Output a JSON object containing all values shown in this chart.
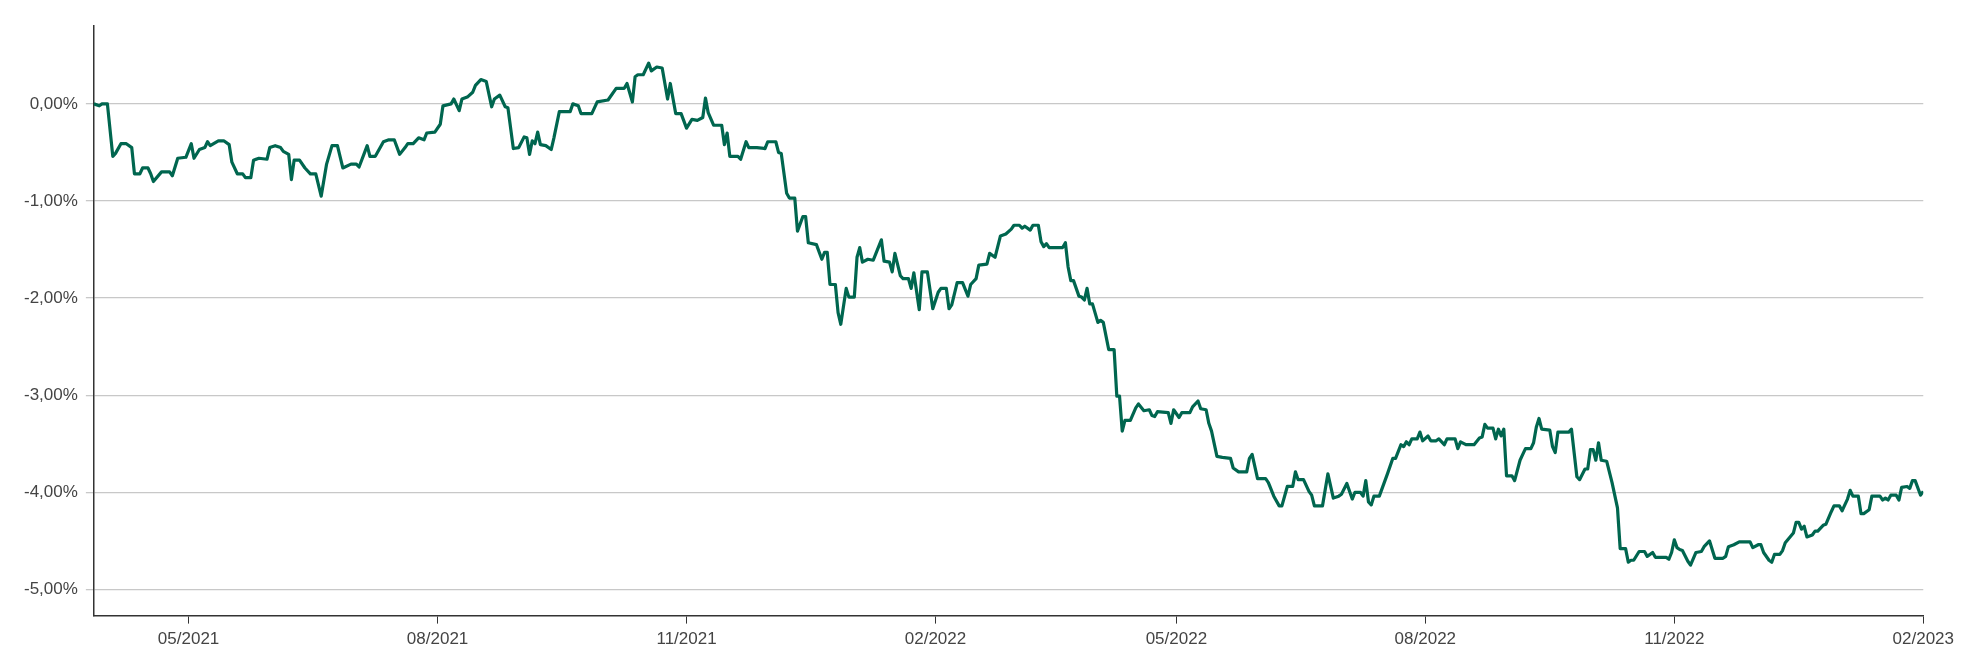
{
  "chart_data": {
    "type": "line",
    "xlim": [
      "2021-03-27",
      "2023-02-01"
    ],
    "ylim": [
      -5.27,
      0.8
    ],
    "xticks": [
      {
        "value": "2021-05-01",
        "label": "05/2021"
      },
      {
        "value": "2021-08-01",
        "label": "08/2021"
      },
      {
        "value": "2021-11-01",
        "label": "11/2021"
      },
      {
        "value": "2022-02-01",
        "label": "02/2022"
      },
      {
        "value": "2022-05-01",
        "label": "05/2022"
      },
      {
        "value": "2022-08-01",
        "label": "08/2022"
      },
      {
        "value": "2022-11-01",
        "label": "11/2022"
      },
      {
        "value": "2023-02-01",
        "label": "02/2023"
      }
    ],
    "yticks": [
      {
        "value": 0,
        "label": "0,00%"
      },
      {
        "value": -1,
        "label": "-1,00%"
      },
      {
        "value": -2,
        "label": "-2,00%"
      },
      {
        "value": -3,
        "label": "-3,00%"
      },
      {
        "value": -4,
        "label": "-4,00%"
      },
      {
        "value": -5,
        "label": "-5,00%"
      }
    ],
    "grid": "y",
    "legend": false,
    "marker": "none",
    "line_style": "solid",
    "series": [
      {
        "color": "#00664f",
        "x": [
          "2021-03-27",
          "2021-03-29",
          "2021-03-30",
          "2021-04-01",
          "2021-04-03",
          "2021-04-04",
          "2021-04-06",
          "2021-04-08",
          "2021-04-10",
          "2021-04-11",
          "2021-04-13",
          "2021-04-14",
          "2021-04-16",
          "2021-04-17",
          "2021-04-18",
          "2021-04-21",
          "2021-04-24",
          "2021-04-25",
          "2021-04-27",
          "2021-04-30",
          "2021-05-02",
          "2021-05-03",
          "2021-05-05",
          "2021-05-07",
          "2021-05-08",
          "2021-05-09",
          "2021-05-12",
          "2021-05-14",
          "2021-05-16",
          "2021-05-17",
          "2021-05-19",
          "2021-05-21",
          "2021-05-22",
          "2021-05-24",
          "2021-05-25",
          "2021-05-27",
          "2021-05-30",
          "2021-05-31",
          "2021-06-02",
          "2021-06-04",
          "2021-06-05",
          "2021-06-07",
          "2021-06-08",
          "2021-06-09",
          "2021-06-11",
          "2021-06-13",
          "2021-06-15",
          "2021-06-17",
          "2021-06-19",
          "2021-06-21",
          "2021-06-23",
          "2021-06-25",
          "2021-06-27",
          "2021-06-30",
          "2021-07-02",
          "2021-07-03",
          "2021-07-06",
          "2021-07-07",
          "2021-07-09",
          "2021-07-12",
          "2021-07-14",
          "2021-07-16",
          "2021-07-18",
          "2021-07-20",
          "2021-07-21",
          "2021-07-23",
          "2021-07-25",
          "2021-07-27",
          "2021-07-28",
          "2021-07-31",
          "2021-08-02",
          "2021-08-03",
          "2021-08-06",
          "2021-08-07",
          "2021-08-09",
          "2021-08-10",
          "2021-08-12",
          "2021-08-14",
          "2021-08-15",
          "2021-08-17",
          "2021-08-19",
          "2021-08-21",
          "2021-08-22",
          "2021-08-24",
          "2021-08-26",
          "2021-08-27",
          "2021-08-29",
          "2021-08-31",
          "2021-09-02",
          "2021-09-03",
          "2021-09-04",
          "2021-09-05",
          "2021-09-06",
          "2021-09-07",
          "2021-09-08",
          "2021-09-10",
          "2021-09-12",
          "2021-09-13",
          "2021-09-15",
          "2021-09-19",
          "2021-09-20",
          "2021-09-22",
          "2021-09-23",
          "2021-09-27",
          "2021-09-29",
          "2021-10-03",
          "2021-10-06",
          "2021-10-09",
          "2021-10-10",
          "2021-10-12",
          "2021-10-13",
          "2021-10-14",
          "2021-10-16",
          "2021-10-18",
          "2021-10-19",
          "2021-10-21",
          "2021-10-23",
          "2021-10-25",
          "2021-10-26",
          "2021-10-28",
          "2021-10-30",
          "2021-11-01",
          "2021-11-03",
          "2021-11-05",
          "2021-11-07",
          "2021-11-08",
          "2021-11-09",
          "2021-11-11",
          "2021-11-14",
          "2021-11-15",
          "2021-11-16",
          "2021-11-17",
          "2021-11-20",
          "2021-11-21",
          "2021-11-23",
          "2021-11-24",
          "2021-11-27",
          "2021-11-30",
          "2021-12-01",
          "2021-12-04",
          "2021-12-05",
          "2021-12-06",
          "2021-12-08",
          "2021-12-09",
          "2021-12-11",
          "2021-12-12",
          "2021-12-14",
          "2021-12-15",
          "2021-12-16",
          "2021-12-19",
          "2021-12-21",
          "2021-12-22",
          "2021-12-23",
          "2021-12-24",
          "2021-12-26",
          "2021-12-27",
          "2021-12-28",
          "2021-12-30",
          "2021-12-31",
          "2022-01-02",
          "2022-01-03",
          "2022-01-04",
          "2022-01-05",
          "2022-01-07",
          "2022-01-09",
          "2022-01-10",
          "2022-01-12",
          "2022-01-13",
          "2022-01-15",
          "2022-01-16",
          "2022-01-17",
          "2022-01-19",
          "2022-01-20",
          "2022-01-22",
          "2022-01-23",
          "2022-01-24",
          "2022-01-26",
          "2022-01-27",
          "2022-01-29",
          "2022-01-31",
          "2022-02-02",
          "2022-02-03",
          "2022-02-05",
          "2022-02-06",
          "2022-02-07",
          "2022-02-09",
          "2022-02-11",
          "2022-02-13",
          "2022-02-14",
          "2022-02-16",
          "2022-02-17",
          "2022-02-20",
          "2022-02-21",
          "2022-02-23",
          "2022-02-25",
          "2022-02-27",
          "2022-03-01",
          "2022-03-02",
          "2022-03-04",
          "2022-03-05",
          "2022-03-06",
          "2022-03-08",
          "2022-03-09",
          "2022-03-11",
          "2022-03-12",
          "2022-03-13",
          "2022-03-14",
          "2022-03-15",
          "2022-03-20",
          "2022-03-21",
          "2022-03-22",
          "2022-03-23",
          "2022-03-24",
          "2022-03-26",
          "2022-03-27",
          "2022-03-28",
          "2022-03-29",
          "2022-03-30",
          "2022-03-31",
          "2022-04-02",
          "2022-04-03",
          "2022-04-04",
          "2022-04-06",
          "2022-04-08",
          "2022-04-09",
          "2022-04-10",
          "2022-04-11",
          "2022-04-12",
          "2022-04-14",
          "2022-04-16",
          "2022-04-17",
          "2022-04-19",
          "2022-04-21",
          "2022-04-22",
          "2022-04-23",
          "2022-04-24",
          "2022-04-28",
          "2022-04-29",
          "2022-04-30",
          "2022-05-02",
          "2022-05-03",
          "2022-05-06",
          "2022-05-07",
          "2022-05-09",
          "2022-05-10",
          "2022-05-12",
          "2022-05-13",
          "2022-05-14",
          "2022-05-16",
          "2022-05-18",
          "2022-05-21",
          "2022-05-22",
          "2022-05-24",
          "2022-05-27",
          "2022-05-28",
          "2022-05-29",
          "2022-05-31",
          "2022-06-03",
          "2022-06-04",
          "2022-06-06",
          "2022-06-08",
          "2022-06-09",
          "2022-06-11",
          "2022-06-13",
          "2022-06-14",
          "2022-06-15",
          "2022-06-17",
          "2022-06-19",
          "2022-06-20",
          "2022-06-21",
          "2022-06-24",
          "2022-06-26",
          "2022-06-28",
          "2022-06-30",
          "2022-07-01",
          "2022-07-03",
          "2022-07-05",
          "2022-07-06",
          "2022-07-08",
          "2022-07-09",
          "2022-07-10",
          "2022-07-11",
          "2022-07-12",
          "2022-07-13",
          "2022-07-15",
          "2022-07-18",
          "2022-07-20",
          "2022-07-21",
          "2022-07-23",
          "2022-07-24",
          "2022-07-25",
          "2022-07-26",
          "2022-07-27",
          "2022-07-29",
          "2022-07-30",
          "2022-07-31",
          "2022-08-02",
          "2022-08-03",
          "2022-08-05",
          "2022-08-06",
          "2022-08-08",
          "2022-08-09",
          "2022-08-12",
          "2022-08-13",
          "2022-08-14",
          "2022-08-16",
          "2022-08-19",
          "2022-08-21",
          "2022-08-22",
          "2022-08-23",
          "2022-08-24",
          "2022-08-26",
          "2022-08-27",
          "2022-08-28",
          "2022-08-29",
          "2022-08-30",
          "2022-08-31",
          "2022-09-02",
          "2022-09-03",
          "2022-09-05",
          "2022-09-06",
          "2022-09-07",
          "2022-09-09",
          "2022-09-10",
          "2022-09-11",
          "2022-09-12",
          "2022-09-13",
          "2022-09-16",
          "2022-09-17",
          "2022-09-18",
          "2022-09-19",
          "2022-09-23",
          "2022-09-24",
          "2022-09-26",
          "2022-09-27",
          "2022-09-29",
          "2022-09-30",
          "2022-10-01",
          "2022-10-02",
          "2022-10-03",
          "2022-10-04",
          "2022-10-05",
          "2022-10-07",
          "2022-10-09",
          "2022-10-11",
          "2022-10-12",
          "2022-10-14",
          "2022-10-15",
          "2022-10-16",
          "2022-10-17",
          "2022-10-19",
          "2022-10-21",
          "2022-10-22",
          "2022-10-24",
          "2022-10-25",
          "2022-10-29",
          "2022-10-30",
          "2022-10-31",
          "2022-11-01",
          "2022-11-02",
          "2022-11-03",
          "2022-11-04",
          "2022-11-06",
          "2022-11-07",
          "2022-11-09",
          "2022-11-11",
          "2022-11-12",
          "2022-11-14",
          "2022-11-16",
          "2022-11-19",
          "2022-11-20",
          "2022-11-21",
          "2022-11-23",
          "2022-11-25",
          "2022-11-29",
          "2022-11-30",
          "2022-12-02",
          "2022-12-03",
          "2022-12-04",
          "2022-12-06",
          "2022-12-07",
          "2022-12-08",
          "2022-12-10",
          "2022-12-11",
          "2022-12-12",
          "2022-12-15",
          "2022-12-16",
          "2022-12-17",
          "2022-12-18",
          "2022-12-19",
          "2022-12-20",
          "2022-12-22",
          "2022-12-23",
          "2022-12-24",
          "2022-12-26",
          "2022-12-27",
          "2022-12-29",
          "2022-12-30",
          "2023-01-01",
          "2023-01-02",
          "2023-01-04",
          "2023-01-05",
          "2023-01-06",
          "2023-01-08",
          "2023-01-09",
          "2023-01-10",
          "2023-01-12",
          "2023-01-13",
          "2023-01-16",
          "2023-01-17",
          "2023-01-18",
          "2023-01-19",
          "2023-01-20",
          "2023-01-22",
          "2023-01-23",
          "2023-01-24",
          "2023-01-26",
          "2023-01-27",
          "2023-01-28",
          "2023-01-29",
          "2023-01-31",
          "2023-02-01"
        ],
        "values": [
          0,
          -0.02,
          0,
          0,
          -0.54,
          -0.51,
          -0.41,
          -0.41,
          -0.45,
          -0.72,
          -0.72,
          -0.66,
          -0.66,
          -0.72,
          -0.8,
          -0.7,
          -0.7,
          -0.74,
          -0.56,
          -0.55,
          -0.41,
          -0.56,
          -0.47,
          -0.45,
          -0.39,
          -0.43,
          -0.38,
          -0.38,
          -0.42,
          -0.6,
          -0.72,
          -0.72,
          -0.76,
          -0.76,
          -0.58,
          -0.56,
          -0.57,
          -0.45,
          -0.43,
          -0.45,
          -0.49,
          -0.52,
          -0.78,
          -0.58,
          -0.58,
          -0.66,
          -0.72,
          -0.72,
          -0.95,
          -0.62,
          -0.43,
          -0.43,
          -0.66,
          -0.62,
          -0.62,
          -0.65,
          -0.43,
          -0.54,
          -0.54,
          -0.39,
          -0.37,
          -0.37,
          -0.52,
          -0.45,
          -0.41,
          -0.41,
          -0.35,
          -0.37,
          -0.3,
          -0.29,
          -0.21,
          -0.02,
          0,
          0.05,
          -0.07,
          0.05,
          0.07,
          0.12,
          0.19,
          0.25,
          0.23,
          -0.03,
          0.05,
          0.09,
          -0.03,
          -0.04,
          -0.46,
          -0.45,
          -0.34,
          -0.35,
          -0.52,
          -0.38,
          -0.41,
          -0.29,
          -0.42,
          -0.43,
          -0.47,
          -0.35,
          -0.08,
          -0.08,
          0,
          -0.02,
          -0.1,
          -0.1,
          0.02,
          0.04,
          0.16,
          0.16,
          0.21,
          0.02,
          0.28,
          0.3,
          0.3,
          0.42,
          0.34,
          0.38,
          0.37,
          0.05,
          0.21,
          -0.1,
          -0.1,
          -0.25,
          -0.16,
          -0.17,
          -0.14,
          0.06,
          -0.09,
          -0.22,
          -0.22,
          -0.42,
          -0.3,
          -0.54,
          -0.54,
          -0.57,
          -0.39,
          -0.45,
          -0.45,
          -0.46,
          -0.39,
          -0.39,
          -0.5,
          -0.51,
          -0.92,
          -0.97,
          -0.97,
          -1.31,
          -1.16,
          -1.16,
          -1.43,
          -1.45,
          -1.6,
          -1.53,
          -1.53,
          -1.86,
          -1.86,
          -2.15,
          -2.27,
          -1.9,
          -1.99,
          -1.99,
          -1.58,
          -1.48,
          -1.63,
          -1.6,
          -1.61,
          -1.54,
          -1.4,
          -1.62,
          -1.63,
          -1.73,
          -1.54,
          -1.77,
          -1.8,
          -1.8,
          -1.9,
          -1.74,
          -2.12,
          -1.73,
          -1.73,
          -2.11,
          -1.94,
          -1.9,
          -1.9,
          -2.11,
          -2.07,
          -1.84,
          -1.84,
          -1.98,
          -1.86,
          -1.8,
          -1.66,
          -1.65,
          -1.54,
          -1.58,
          -1.36,
          -1.34,
          -1.29,
          -1.25,
          -1.25,
          -1.28,
          -1.26,
          -1.3,
          -1.25,
          -1.25,
          -1.42,
          -1.47,
          -1.44,
          -1.48,
          -1.48,
          -1.43,
          -1.68,
          -1.82,
          -1.82,
          -1.98,
          -1.99,
          -2.02,
          -1.9,
          -2.06,
          -2.06,
          -2.25,
          -2.23,
          -2.25,
          -2.53,
          -2.53,
          -3.01,
          -3.01,
          -3.37,
          -3.26,
          -3.26,
          -3.13,
          -3.09,
          -3.16,
          -3.15,
          -3.21,
          -3.22,
          -3.17,
          -3.18,
          -3.29,
          -3.15,
          -3.23,
          -3.18,
          -3.18,
          -3.12,
          -3.06,
          -3.14,
          -3.15,
          -3.29,
          -3.37,
          -3.63,
          -3.64,
          -3.65,
          -3.75,
          -3.79,
          -3.79,
          -3.65,
          -3.61,
          -3.86,
          -3.86,
          -3.9,
          -4.04,
          -4.14,
          -4.14,
          -3.94,
          -3.94,
          -3.79,
          -3.87,
          -3.87,
          -3.99,
          -4.03,
          -4.14,
          -4.14,
          -3.81,
          -4.06,
          -4.04,
          -4.02,
          -3.91,
          -4.07,
          -4,
          -4,
          -4.04,
          -3.88,
          -4.1,
          -4.13,
          -4.04,
          -4.04,
          -3.81,
          -3.65,
          -3.65,
          -3.51,
          -3.53,
          -3.48,
          -3.51,
          -3.45,
          -3.45,
          -3.38,
          -3.47,
          -3.42,
          -3.47,
          -3.47,
          -3.45,
          -3.51,
          -3.45,
          -3.45,
          -3.55,
          -3.48,
          -3.51,
          -3.51,
          -3.44,
          -3.43,
          -3.3,
          -3.34,
          -3.34,
          -3.45,
          -3.35,
          -3.42,
          -3.35,
          -3.83,
          -3.83,
          -3.88,
          -3.67,
          -3.61,
          -3.55,
          -3.55,
          -3.49,
          -3.33,
          -3.24,
          -3.35,
          -3.36,
          -3.53,
          -3.59,
          -3.38,
          -3.38,
          -3.35,
          -3.84,
          -3.87,
          -3.76,
          -3.76,
          -3.56,
          -3.56,
          -3.67,
          -3.49,
          -3.67,
          -3.68,
          -3.9,
          -4.16,
          -4.58,
          -4.58,
          -4.72,
          -4.7,
          -4.7,
          -4.61,
          -4.61,
          -4.66,
          -4.62,
          -4.67,
          -4.67,
          -4.69,
          -4.62,
          -4.49,
          -4.57,
          -4.59,
          -4.6,
          -4.71,
          -4.75,
          -4.62,
          -4.61,
          -4.56,
          -4.5,
          -4.68,
          -4.68,
          -4.66,
          -4.56,
          -4.54,
          -4.51,
          -4.51,
          -4.57,
          -4.54,
          -4.54,
          -4.62,
          -4.7,
          -4.72,
          -4.64,
          -4.64,
          -4.6,
          -4.52,
          -4.42,
          -4.31,
          -4.31,
          -4.38,
          -4.35,
          -4.46,
          -4.44,
          -4.4,
          -4.4,
          -4.34,
          -4.33,
          -4.2,
          -4.14,
          -4.14,
          -4.19,
          -4.07,
          -3.98,
          -4.04,
          -4.04,
          -4.22,
          -4.22,
          -4.18,
          -4.04,
          -4.04,
          -4.08,
          -4.06,
          -4.08,
          -4.03,
          -4.03,
          -4.08,
          -3.95,
          -3.94,
          -3.96,
          -3.88,
          -3.88,
          -4.03,
          -3.99
        ]
      }
    ]
  }
}
